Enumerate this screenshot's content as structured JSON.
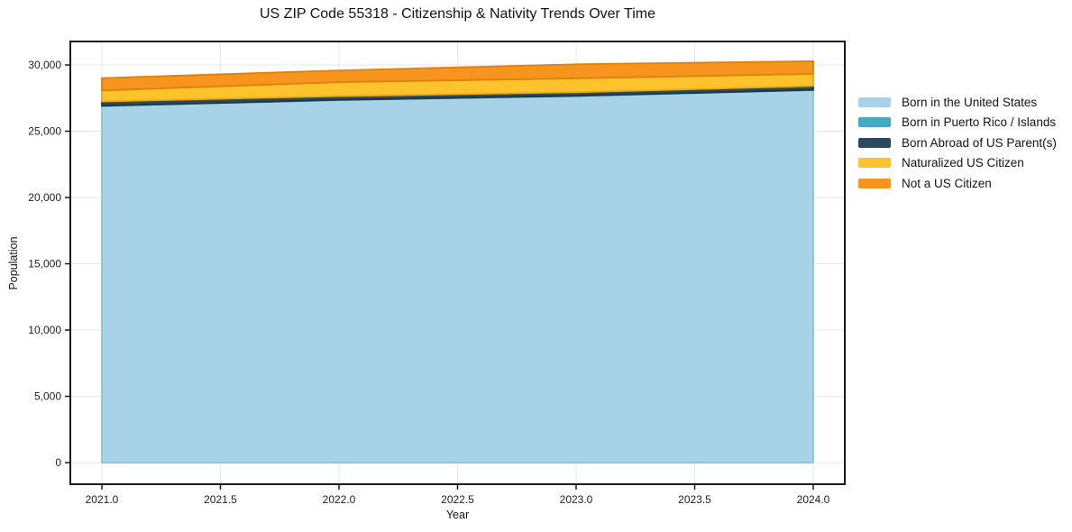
{
  "chart_data": {
    "type": "area",
    "stacked": true,
    "title": "US ZIP Code 55318 - Citizenship & Nativity Trends Over Time",
    "xlabel": "Year",
    "ylabel": "Population",
    "x": [
      2021,
      2022,
      2023,
      2024
    ],
    "series": [
      {
        "id": "born-in-the-united-states",
        "name": "Born in the United States",
        "color": "#a8d2e8",
        "edge": "#8fc0da",
        "values": [
          26900,
          27350,
          27650,
          28100
        ]
      },
      {
        "id": "born-in-puerto-rico-islands",
        "name": "Born in Puerto Rico / Islands",
        "color": "#45a9c6",
        "edge": "#3590ab",
        "values": [
          15,
          15,
          20,
          20
        ]
      },
      {
        "id": "born-abroad-of-us-parents",
        "name": "Born Abroad of US Parent(s)",
        "color": "#2a4a5e",
        "edge": "#1e3747",
        "values": [
          330,
          280,
          270,
          290
        ]
      },
      {
        "id": "naturalized-us-citizen",
        "name": "Naturalized US Citizen",
        "color": "#fcc32d",
        "edge": "#eda90f",
        "values": [
          830,
          1060,
          1050,
          920
        ]
      },
      {
        "id": "not-a-us-citizen",
        "name": "Not a US Citizen",
        "color": "#f6941e",
        "edge": "#e0800c",
        "values": [
          930,
          880,
          1060,
          950
        ]
      }
    ],
    "xlim": [
      2020.867,
      2024.133
    ],
    "ylim": [
      -1630,
      31770
    ],
    "xticks": {
      "values": [
        2021.0,
        2021.5,
        2022.0,
        2022.5,
        2023.0,
        2023.5,
        2024.0
      ],
      "labels": [
        "2021.0",
        "2021.5",
        "2022.0",
        "2022.5",
        "2023.0",
        "2023.5",
        "2024.0"
      ]
    },
    "yticks": {
      "values": [
        0,
        5000,
        10000,
        15000,
        20000,
        25000,
        30000
      ],
      "labels": [
        "0",
        "5,000",
        "10,000",
        "15,000",
        "20,000",
        "25,000",
        "30,000"
      ]
    },
    "grid": true,
    "grid_color": "#e7e7e7",
    "frame_color": "#1a1a1a",
    "legend_position": "right-outside"
  }
}
